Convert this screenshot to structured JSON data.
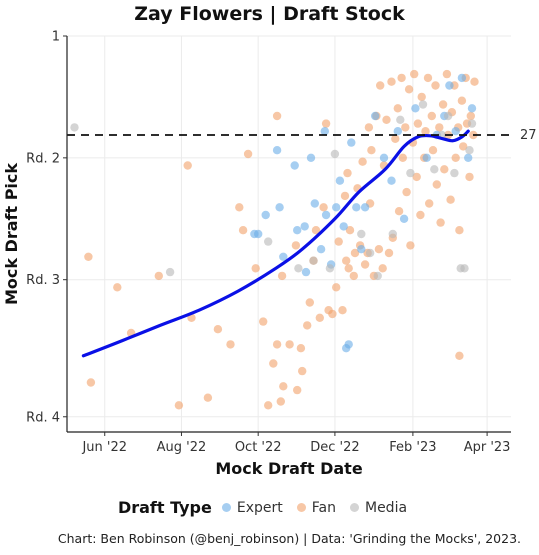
{
  "chart_data": {
    "type": "scatter",
    "title": "Zay Flowers | Draft Stock",
    "xlabel": "Mock Draft Date",
    "ylabel": "Mock Draft Pick",
    "x_ticks": [
      {
        "date": "2022-06-01",
        "label": "Jun '22"
      },
      {
        "date": "2022-08-01",
        "label": "Aug '22"
      },
      {
        "date": "2022-10-01",
        "label": "Oct '22"
      },
      {
        "date": "2022-12-01",
        "label": "Dec '22"
      },
      {
        "date": "2023-02-01",
        "label": "Feb '23"
      },
      {
        "date": "2023-04-01",
        "label": "Apr '23"
      }
    ],
    "y_ticks": [
      {
        "pick": 1,
        "label": "1"
      },
      {
        "pick": 33,
        "label": "Rd. 2"
      },
      {
        "pick": 65,
        "label": "Rd. 3"
      },
      {
        "pick": 101,
        "label": "Rd. 4"
      }
    ],
    "xlim": [
      "2022-05-02",
      "2023-04-20"
    ],
    "ylim": [
      1,
      105
    ],
    "reference_line": {
      "pick": 27,
      "label": "27",
      "style": "dashed"
    },
    "grid": true,
    "legend": {
      "title": "Draft Type",
      "placement": "bottom",
      "items": [
        {
          "name": "Expert",
          "color": "#6aaee8"
        },
        {
          "name": "Fan",
          "color": "#f2a26a"
        },
        {
          "name": "Media",
          "color": "#b8b8b8"
        }
      ]
    },
    "trend": {
      "color": "#0a10e6",
      "points": [
        [
          "2022-05-15",
          85
        ],
        [
          "2022-06-15",
          81
        ],
        [
          "2022-07-15",
          77
        ],
        [
          "2022-08-15",
          73
        ],
        [
          "2022-09-15",
          68
        ],
        [
          "2022-10-15",
          62
        ],
        [
          "2022-11-05",
          57
        ],
        [
          "2022-12-01",
          49
        ],
        [
          "2022-12-20",
          42
        ],
        [
          "2023-01-10",
          36
        ],
        [
          "2023-01-25",
          30
        ],
        [
          "2023-02-05",
          27.5
        ],
        [
          "2023-02-15",
          27.2
        ],
        [
          "2023-02-25",
          28
        ],
        [
          "2023-03-05",
          28.5
        ],
        [
          "2023-03-12",
          27.5
        ],
        [
          "2023-03-17",
          26
        ]
      ]
    },
    "series": [
      {
        "name": "Fan",
        "color": "#f2a26a",
        "points": [
          [
            "2022-05-19",
            59
          ],
          [
            "2022-05-21",
            92
          ],
          [
            "2022-06-11",
            67
          ],
          [
            "2022-06-22",
            79
          ],
          [
            "2022-07-14",
            64
          ],
          [
            "2022-07-30",
            98
          ],
          [
            "2022-08-06",
            35
          ],
          [
            "2022-08-09",
            75
          ],
          [
            "2022-08-22",
            96
          ],
          [
            "2022-08-30",
            78
          ],
          [
            "2022-09-09",
            82
          ],
          [
            "2022-09-16",
            46
          ],
          [
            "2022-09-19",
            52
          ],
          [
            "2022-09-23",
            32
          ],
          [
            "2022-09-29",
            62
          ],
          [
            "2022-10-05",
            76
          ],
          [
            "2022-10-09",
            98
          ],
          [
            "2022-10-13",
            87
          ],
          [
            "2022-10-16",
            22
          ],
          [
            "2022-10-16",
            82
          ],
          [
            "2022-10-19",
            97
          ],
          [
            "2022-10-20",
            64
          ],
          [
            "2022-10-21",
            93
          ],
          [
            "2022-10-26",
            82
          ],
          [
            "2022-10-31",
            56
          ],
          [
            "2022-11-01",
            94
          ],
          [
            "2022-11-04",
            83
          ],
          [
            "2022-11-05",
            89
          ],
          [
            "2022-11-09",
            77
          ],
          [
            "2022-11-11",
            71
          ],
          [
            "2022-11-14",
            60
          ],
          [
            "2022-11-16",
            52
          ],
          [
            "2022-11-19",
            75
          ],
          [
            "2022-11-22",
            46
          ],
          [
            "2022-11-24",
            24
          ],
          [
            "2022-11-26",
            73
          ],
          [
            "2022-11-29",
            74
          ],
          [
            "2022-12-02",
            67
          ],
          [
            "2022-12-04",
            55
          ],
          [
            "2022-12-07",
            73
          ],
          [
            "2022-12-09",
            43
          ],
          [
            "2022-12-10",
            60
          ],
          [
            "2022-12-11",
            37
          ],
          [
            "2022-12-12",
            62
          ],
          [
            "2022-12-13",
            52
          ],
          [
            "2022-12-16",
            64
          ],
          [
            "2022-12-17",
            58
          ],
          [
            "2022-12-19",
            41
          ],
          [
            "2022-12-21",
            56
          ],
          [
            "2022-12-23",
            34
          ],
          [
            "2022-12-25",
            61
          ],
          [
            "2022-12-27",
            58
          ],
          [
            "2022-12-28",
            25
          ],
          [
            "2022-12-29",
            45
          ],
          [
            "2022-12-30",
            31
          ],
          [
            "2023-01-01",
            64
          ],
          [
            "2023-01-03",
            22
          ],
          [
            "2023-01-05",
            57
          ],
          [
            "2023-01-06",
            14
          ],
          [
            "2023-01-08",
            62
          ],
          [
            "2023-01-09",
            35
          ],
          [
            "2023-01-11",
            23
          ],
          [
            "2023-01-13",
            58
          ],
          [
            "2023-01-15",
            13
          ],
          [
            "2023-01-16",
            54
          ],
          [
            "2023-01-18",
            28
          ],
          [
            "2023-01-20",
            20
          ],
          [
            "2023-01-21",
            47
          ],
          [
            "2023-01-23",
            12
          ],
          [
            "2023-01-24",
            33
          ],
          [
            "2023-01-26",
            25
          ],
          [
            "2023-01-27",
            42
          ],
          [
            "2023-01-29",
            15
          ],
          [
            "2023-01-30",
            56
          ],
          [
            "2023-02-01",
            29
          ],
          [
            "2023-02-02",
            11
          ],
          [
            "2023-02-04",
            38
          ],
          [
            "2023-02-05",
            24
          ],
          [
            "2023-02-07",
            48
          ],
          [
            "2023-02-08",
            17
          ],
          [
            "2023-02-10",
            33
          ],
          [
            "2023-02-11",
            26
          ],
          [
            "2023-02-13",
            12
          ],
          [
            "2023-02-14",
            45
          ],
          [
            "2023-02-16",
            22
          ],
          [
            "2023-02-17",
            31
          ],
          [
            "2023-02-19",
            14
          ],
          [
            "2023-02-20",
            40
          ],
          [
            "2023-02-22",
            25
          ],
          [
            "2023-02-23",
            50
          ],
          [
            "2023-02-25",
            19
          ],
          [
            "2023-02-26",
            36
          ],
          [
            "2023-02-28",
            11
          ],
          [
            "2023-03-01",
            27
          ],
          [
            "2023-03-03",
            44
          ],
          [
            "2023-03-04",
            21
          ],
          [
            "2023-03-06",
            14
          ],
          [
            "2023-03-07",
            33
          ],
          [
            "2023-03-09",
            25
          ],
          [
            "2023-03-10",
            52
          ],
          [
            "2023-03-12",
            18
          ],
          [
            "2023-03-13",
            30
          ],
          [
            "2023-03-15",
            12
          ],
          [
            "2023-03-16",
            24
          ],
          [
            "2023-03-18",
            38
          ],
          [
            "2023-03-19",
            22
          ],
          [
            "2023-03-21",
            27
          ],
          [
            "2023-03-22",
            13
          ],
          [
            "2023-03-10",
            85
          ]
        ]
      },
      {
        "name": "Expert",
        "color": "#6aaee8",
        "points": [
          [
            "2022-09-28",
            53
          ],
          [
            "2022-10-01",
            53
          ],
          [
            "2022-10-07",
            48
          ],
          [
            "2022-10-16",
            31
          ],
          [
            "2022-10-18",
            46
          ],
          [
            "2022-10-21",
            59
          ],
          [
            "2022-10-30",
            35
          ],
          [
            "2022-11-01",
            52
          ],
          [
            "2022-11-07",
            51
          ],
          [
            "2022-11-08",
            63
          ],
          [
            "2022-11-12",
            33
          ],
          [
            "2022-11-15",
            45
          ],
          [
            "2022-11-20",
            57
          ],
          [
            "2022-11-23",
            26
          ],
          [
            "2022-11-24",
            48
          ],
          [
            "2022-11-28",
            61
          ],
          [
            "2022-12-02",
            46
          ],
          [
            "2022-12-05",
            39
          ],
          [
            "2022-12-08",
            51
          ],
          [
            "2022-12-10",
            83
          ],
          [
            "2022-12-12",
            82
          ],
          [
            "2022-12-14",
            29
          ],
          [
            "2022-12-18",
            46
          ],
          [
            "2022-12-22",
            57
          ],
          [
            "2022-12-25",
            46
          ],
          [
            "2023-01-02",
            22
          ],
          [
            "2023-01-09",
            33
          ],
          [
            "2023-01-15",
            39
          ],
          [
            "2023-01-20",
            26
          ],
          [
            "2023-01-25",
            49
          ],
          [
            "2023-02-03",
            20
          ],
          [
            "2023-02-12",
            33
          ],
          [
            "2023-02-20",
            27
          ],
          [
            "2023-02-26",
            22
          ],
          [
            "2023-03-02",
            14
          ],
          [
            "2023-03-07",
            26
          ],
          [
            "2023-03-12",
            12
          ],
          [
            "2023-03-17",
            33
          ],
          [
            "2023-03-20",
            20
          ]
        ]
      },
      {
        "name": "Media",
        "color": "#b8b8b8",
        "points": [
          [
            "2022-05-08",
            25
          ],
          [
            "2022-07-23",
            63
          ],
          [
            "2022-10-09",
            55
          ],
          [
            "2022-11-02",
            62
          ],
          [
            "2022-11-14",
            60
          ],
          [
            "2022-11-27",
            62
          ],
          [
            "2022-12-01",
            32
          ],
          [
            "2022-12-22",
            53
          ],
          [
            "2022-12-29",
            58
          ],
          [
            "2023-01-04",
            64
          ],
          [
            "2023-01-16",
            53
          ],
          [
            "2023-01-22",
            23
          ],
          [
            "2023-01-30",
            37
          ],
          [
            "2023-02-09",
            19
          ],
          [
            "2023-02-18",
            36
          ],
          [
            "2023-02-24",
            27
          ],
          [
            "2023-03-01",
            22
          ],
          [
            "2023-03-06",
            37
          ],
          [
            "2023-03-11",
            62
          ],
          [
            "2023-03-14",
            62
          ],
          [
            "2023-03-18",
            31
          ],
          [
            "2023-03-20",
            24
          ]
        ]
      }
    ]
  },
  "caption": "Chart: Ben Robinson (@benj_robinson) | Data: 'Grinding the Mocks', 2023."
}
